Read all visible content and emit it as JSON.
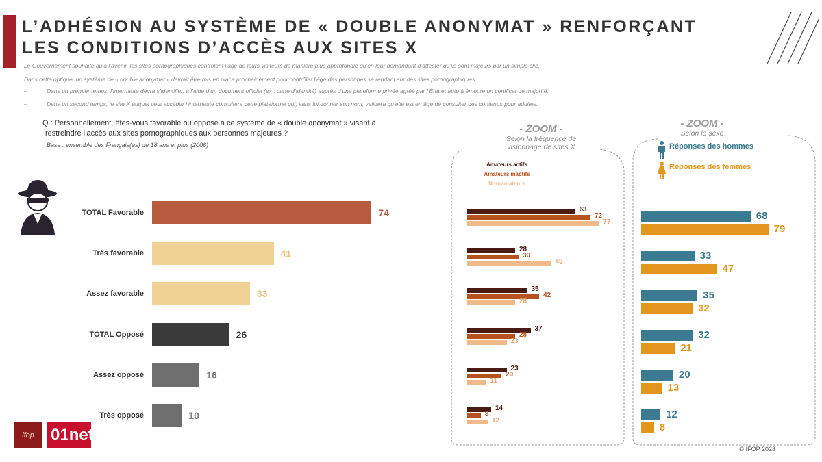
{
  "header": {
    "title_line1": "L’ADHÉSION AU SYSTÈME DE « DOUBLE ANONYMAT » RENFORÇANT",
    "title_line2": "LES CONDITIONS D’ACCÈS AUX SITES X"
  },
  "intro": [
    "Le Gouvernement souhaite qu’à l’avenir, les sites pornographiques contrôlent l’âge de leurs visiteurs de manière plus approfondie qu’en leur demandant d’attester qu’ils sont majeurs par un simple clic..",
    "Dans cette optique, un système de « double anonymat » devrait être mis en place prochainement pour contrôler l’âge des personnes se rendant sur des sites pornographiques."
  ],
  "bullets": [
    {
      "dash": "–",
      "text": "Dans un premier temps, l’internaute devra s’identifier, à l’aide d’un document officiel (ex : carte d’identité) auprès d’une plateforme privée agréé par l’État et apte à émettre un certificat de majorité."
    },
    {
      "dash": "–",
      "text": "Dans un second temps, le site X auquel veut accéder l’internaute consultera cette plateforme qui, sans lui donner son nom, validera qu’elle est en âge de consulter des contenus pour adultes."
    }
  ],
  "question": {
    "line1": "Q : Personnellement, êtes-vous favorable ou opposé à ce système de « double anonymat » visant à",
    "line2": "restreindre l’accès aux sites pornographiques aux personnes majeures  ?",
    "base": "Base : ensemble des Français(es) de 18 ans et plus (2006)"
  },
  "chart_data": [
    {
      "type": "bar",
      "orientation": "horizontal",
      "title": "",
      "categories": [
        "TOTAL Favorable",
        "Très favorable",
        "Assez favorable",
        "TOTAL Opposé",
        "Assez opposé",
        "Très opposé"
      ],
      "values": [
        74,
        41,
        33,
        26,
        16,
        10
      ],
      "colors": [
        "#b85a3e",
        "#f1d296",
        "#f1d296",
        "#3a3a3a",
        "#6e6e6e",
        "#6e6e6e"
      ],
      "label_colors": [
        "#b85a3e",
        "#e8c27e",
        "#e8c27e",
        "#333333",
        "#777777",
        "#777777"
      ],
      "xlim": [
        0,
        80
      ]
    },
    {
      "type": "bar",
      "orientation": "horizontal",
      "zoom_label": "- ZOOM -",
      "title": "Selon la fréquence de visionnage de sites X",
      "categories": [
        "TOTAL Favorable",
        "Très favorable",
        "Assez favorable",
        "TOTAL Opposé",
        "Assez opposé",
        "Très opposé"
      ],
      "series": [
        {
          "name": "Amateurs actifs",
          "color": "#4a1c14",
          "values": [
            63,
            28,
            35,
            37,
            23,
            14
          ]
        },
        {
          "name": "Amateurs inactifs",
          "color": "#b5521f",
          "values": [
            72,
            30,
            42,
            28,
            20,
            8
          ]
        },
        {
          "name": "Non-amateurs",
          "color": "#f0b98a",
          "values": [
            77,
            49,
            28,
            23,
            11,
            12
          ]
        }
      ],
      "xlim": [
        0,
        80
      ]
    },
    {
      "type": "bar",
      "orientation": "horizontal",
      "zoom_label": "- ZOOM -",
      "title": "Selon le sexe",
      "categories": [
        "TOTAL Favorable",
        "Très favorable",
        "Assez favorable",
        "TOTAL Opposé",
        "Assez opposé",
        "Très opposé"
      ],
      "series": [
        {
          "name": "Réponses des hommes",
          "color": "#3b7a90",
          "values": [
            68,
            33,
            35,
            32,
            20,
            12
          ]
        },
        {
          "name": "Réponses des femmes",
          "color": "#e3961d",
          "values": [
            79,
            47,
            32,
            21,
            13,
            8
          ]
        }
      ],
      "xlim": [
        0,
        80
      ]
    }
  ],
  "logos": {
    "ifop": "ifop",
    "net": "01net"
  },
  "footer": {
    "copyright": "© IFOP 2023"
  }
}
